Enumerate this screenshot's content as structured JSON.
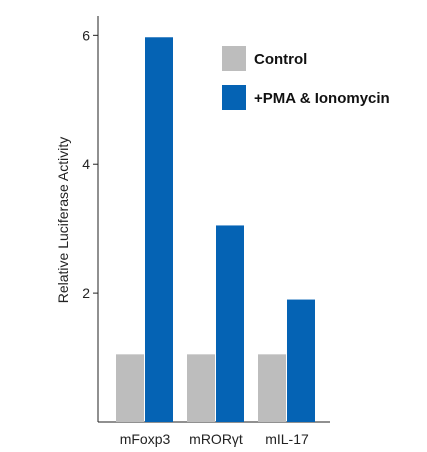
{
  "chart_data": {
    "type": "bar",
    "title": "",
    "xlabel": "",
    "ylabel": "Relative Luciferase Activity",
    "ylim": [
      0,
      6.3
    ],
    "yticks": [
      2,
      4,
      6
    ],
    "categories": [
      "mFoxp3",
      "mRORγt",
      "mIL-17"
    ],
    "series": [
      {
        "name": "Control",
        "color": "#bdbdbd",
        "values": [
          1.05,
          1.05,
          1.05
        ]
      },
      {
        "name": "+PMA & Ionomycin",
        "color": "#0563b4",
        "values": [
          5.97,
          3.05,
          1.9
        ]
      }
    ],
    "grid": false,
    "legend": "top-right"
  }
}
